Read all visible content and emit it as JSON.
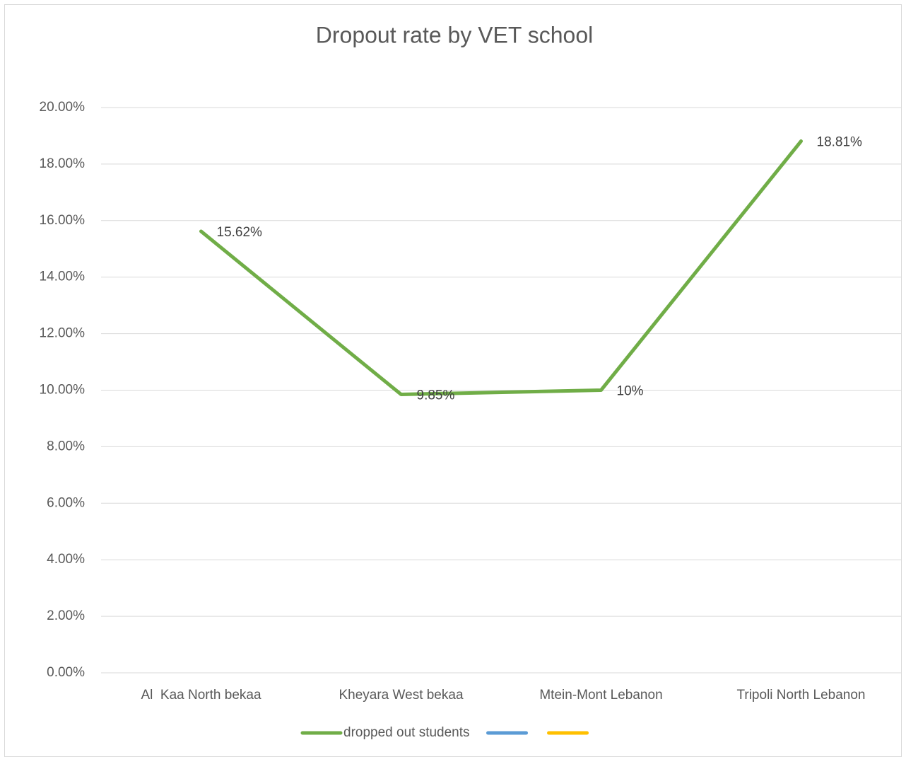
{
  "chart_data": {
    "type": "line",
    "title": "Dropout rate by VET school",
    "categories": [
      "Al  Kaa North bekaa",
      "Kheyara West bekaa",
      "Mtein-Mont Lebanon",
      "Tripoli North Lebanon"
    ],
    "series": [
      {
        "name": "dropped out students",
        "color": "#70ad47",
        "values": [
          15.62,
          9.85,
          10,
          18.81
        ],
        "value_labels": [
          "15.62%",
          "9.85%",
          "10%",
          "18.81%"
        ]
      },
      {
        "name": null,
        "color": "#5b9bd5",
        "values": [
          null,
          null,
          null,
          null
        ]
      },
      {
        "name": null,
        "color": "#ffc000",
        "values": [
          null,
          null,
          null,
          null
        ]
      }
    ],
    "ylim": [
      0,
      20
    ],
    "yticks": [
      {
        "value": 0,
        "label": "0.00%"
      },
      {
        "value": 2,
        "label": "2.00%"
      },
      {
        "value": 4,
        "label": "4.00%"
      },
      {
        "value": 6,
        "label": "6.00%"
      },
      {
        "value": 8,
        "label": "8.00%"
      },
      {
        "value": 10,
        "label": "10.00%"
      },
      {
        "value": 12,
        "label": "12.00%"
      },
      {
        "value": 14,
        "label": "14.00%"
      },
      {
        "value": 16,
        "label": "16.00%"
      },
      {
        "value": 18,
        "label": "18.00%"
      },
      {
        "value": 20,
        "label": "20.00%"
      }
    ],
    "grid": true,
    "legend": "bottom"
  }
}
